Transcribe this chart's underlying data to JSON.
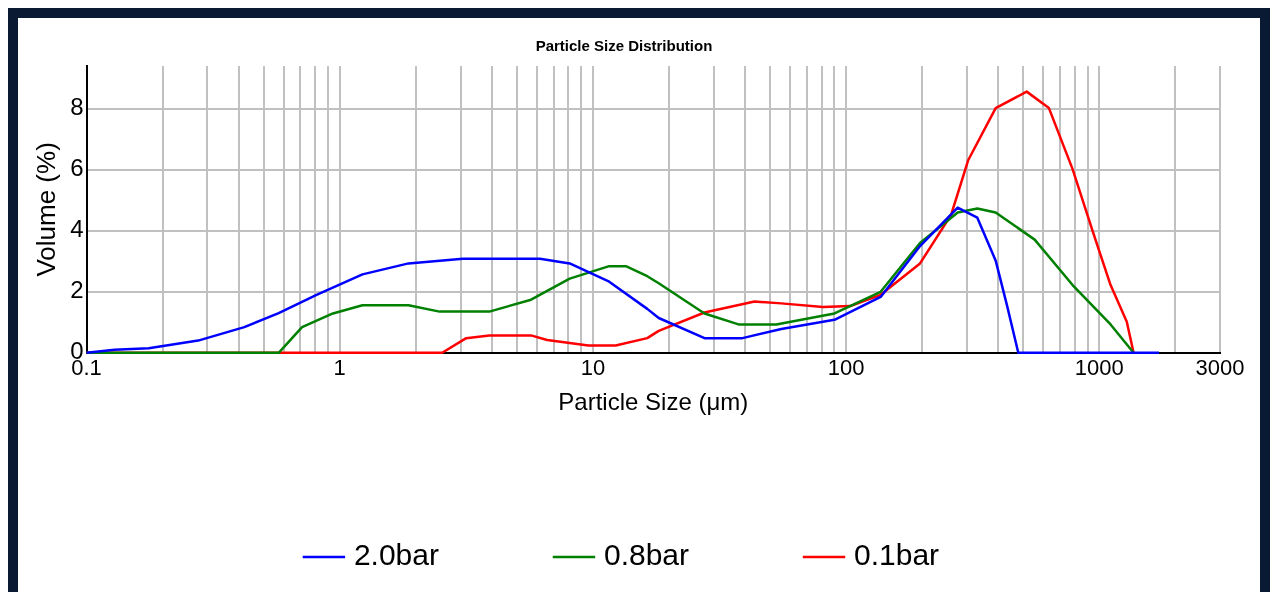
{
  "chart_data": {
    "type": "line",
    "title": "Particle Size Distribution",
    "xlabel": "Particle Size (μm)",
    "ylabel": "Volume (%)",
    "xlim": [
      0.1,
      3000
    ],
    "ylim": [
      0,
      9.4
    ],
    "xticks": [
      0.1,
      {
        "value": 0.2,
        "label": null
      },
      {
        "value": 0.3,
        "label": null
      },
      {
        "value": 0.4,
        "label": null
      },
      {
        "value": 0.5,
        "label": null
      },
      {
        "value": 0.6,
        "label": null
      },
      {
        "value": 0.7,
        "label": null
      },
      {
        "value": 0.8,
        "label": null
      },
      {
        "value": 0.9,
        "label": null
      },
      1,
      {
        "value": 2,
        "label": null
      },
      {
        "value": 3,
        "label": null
      },
      {
        "value": 4,
        "label": null
      },
      {
        "value": 5,
        "label": null
      },
      {
        "value": 6,
        "label": null
      },
      {
        "value": 7,
        "label": null
      },
      {
        "value": 8,
        "label": null
      },
      {
        "value": 9,
        "label": null
      },
      10,
      {
        "value": 20,
        "label": null
      },
      {
        "value": 30,
        "label": null
      },
      {
        "value": 40,
        "label": null
      },
      {
        "value": 50,
        "label": null
      },
      {
        "value": 60,
        "label": null
      },
      {
        "value": 70,
        "label": null
      },
      {
        "value": 80,
        "label": null
      },
      {
        "value": 90,
        "label": null
      },
      100,
      {
        "value": 200,
        "label": null
      },
      {
        "value": 300,
        "label": null
      },
      {
        "value": 400,
        "label": null
      },
      {
        "value": 500,
        "label": null
      },
      {
        "value": 600,
        "label": null
      },
      {
        "value": 700,
        "label": null
      },
      {
        "value": 800,
        "label": null
      },
      {
        "value": 900,
        "label": null
      },
      1000,
      {
        "value": 2000,
        "label": null
      },
      3000
    ],
    "yticks": [
      0,
      2,
      4,
      6,
      8
    ],
    "log": "x",
    "grid": true,
    "legend": "bottom",
    "marker": "none",
    "line_style": "solid",
    "series": [
      {
        "name": "2.0bar",
        "color": "#0000ff",
        "x": [
          0.1,
          0.129,
          0.176,
          0.276,
          0.42,
          0.574,
          0.81,
          1.23,
          1.87,
          3.06,
          6.18,
          8.1,
          11.6,
          16.4,
          18.2,
          27.6,
          39,
          55.5,
          90,
          137,
          196,
          276,
          330,
          390,
          433,
          479,
          1722
        ],
        "values": [
          0,
          0.1,
          0.15,
          0.4,
          0.84,
          1.3,
          1.9,
          2.57,
          2.93,
          3.08,
          3.08,
          2.93,
          2.33,
          1.44,
          1.14,
          0.48,
          0.48,
          0.78,
          1.08,
          1.83,
          3.5,
          4.76,
          4.43,
          3.02,
          1.53,
          0,
          0
        ]
      },
      {
        "name": "0.8bar",
        "color": "#008000",
        "x": [
          0.1,
          0.574,
          0.71,
          0.94,
          1.23,
          1.87,
          2.48,
          3.9,
          5.7,
          8.1,
          11.6,
          13.5,
          16.4,
          18.2,
          27.6,
          37.6,
          53,
          90,
          137,
          196,
          276,
          330,
          390,
          556,
          785,
          1109,
          1367
        ],
        "values": [
          0,
          0,
          0.84,
          1.29,
          1.56,
          1.56,
          1.35,
          1.35,
          1.74,
          2.43,
          2.84,
          2.84,
          2.51,
          2.28,
          1.29,
          0.93,
          0.93,
          1.29,
          2.0,
          3.6,
          4.6,
          4.73,
          4.6,
          3.71,
          2.22,
          0.93,
          0
        ]
      },
      {
        "name": "0.1bar",
        "color": "#ff0000",
        "x": [
          0.1,
          2.54,
          3.16,
          3.9,
          5.7,
          6.6,
          9.6,
          12.3,
          16.4,
          18.2,
          27.6,
          43.5,
          55.5,
          81,
          104,
          137,
          196,
          260,
          304,
          390,
          517,
          633,
          785,
          940,
          1109,
          1285,
          1367
        ],
        "values": [
          0,
          0,
          0.48,
          0.57,
          0.57,
          0.42,
          0.24,
          0.24,
          0.48,
          0.72,
          1.32,
          1.68,
          1.62,
          1.5,
          1.53,
          1.9,
          2.93,
          4.52,
          6.32,
          8.02,
          8.56,
          8.02,
          6.02,
          4.01,
          2.22,
          1.02,
          0
        ]
      }
    ]
  }
}
